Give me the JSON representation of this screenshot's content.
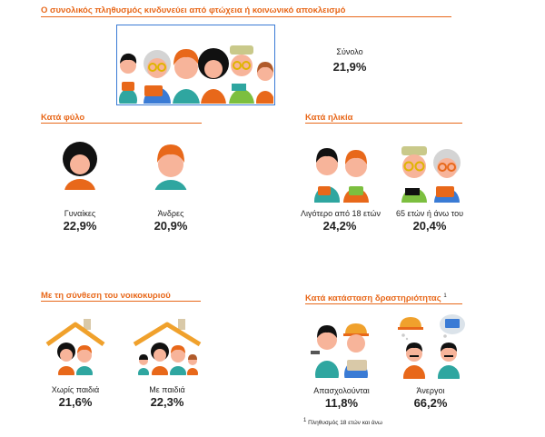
{
  "total": {
    "heading": "Ο συνολικός πληθυσμός κινδυνεύει από φτώχεια ή κοινωνικό αποκλεισμό",
    "label": "Σύνολο",
    "value": "21,9%",
    "icon": "group-of-people-icon"
  },
  "gender": {
    "heading": "Κατά φύλο",
    "items": [
      {
        "label": "Γυναίκες",
        "value": "22,9%",
        "icon": "woman-icon"
      },
      {
        "label": "Άνδρες",
        "value": "20,9%",
        "icon": "man-icon"
      }
    ]
  },
  "age": {
    "heading": "Κατά ηλικία",
    "items": [
      {
        "label": "Λιγότερο από 18 ετών",
        "value": "24,2%",
        "icon": "children-icon"
      },
      {
        "label": "65 ετών ή άνω του",
        "value": "20,4%",
        "icon": "elderly-couple-icon"
      }
    ]
  },
  "household": {
    "heading": "Με τη σύνθεση του νοικοκυριού",
    "items": [
      {
        "label": "Χωρίς παιδιά",
        "value": "21,6%",
        "icon": "house-couple-icon"
      },
      {
        "label": "Με παιδιά",
        "value": "22,3%",
        "icon": "house-family-icon"
      }
    ]
  },
  "activity": {
    "heading": "Κατά κατάσταση δραστηριότητας",
    "footnote_mark": "1",
    "items": [
      {
        "label": "Απασχολούνται",
        "value": "11,8%",
        "icon": "workers-icon"
      },
      {
        "label": "Άνεργοι",
        "value": "66,2%",
        "icon": "unemployed-icon"
      }
    ]
  },
  "footnote": {
    "mark": "1",
    "text": "Πληθυσμός 18 ετών και άνω"
  },
  "colors": {
    "accent": "#e8681a",
    "frame": "#3a7bd5",
    "hair_dark": "#111111",
    "hair_orange": "#e8681a",
    "hair_grey": "#d4d4d4",
    "skin": "#f7b49a",
    "glasses": "#e0b400",
    "teal": "#2fa6a0",
    "green": "#7cbf3f"
  }
}
